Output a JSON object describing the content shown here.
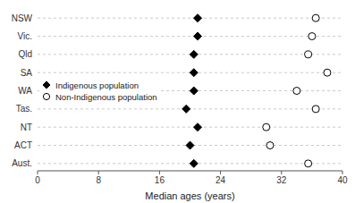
{
  "chart_data": {
    "type": "dot",
    "categories": [
      "NSW",
      "Vic.",
      "Qld",
      "SA",
      "WA",
      "Tas.",
      "NT",
      "ACT",
      "Aust."
    ],
    "series": [
      {
        "name": "Indigenous population",
        "color": "#000000",
        "marker": "diamond",
        "values": [
          21.0,
          21.0,
          20.5,
          20.5,
          20.5,
          19.5,
          21.0,
          20.0,
          20.5
        ]
      },
      {
        "name": "Non-Indigenous population",
        "color": "#ffffff",
        "marker": "circle",
        "values": [
          36.5,
          36.0,
          35.5,
          38.0,
          34.0,
          36.5,
          30.0,
          30.5,
          35.5
        ]
      }
    ],
    "orientation": "horizontal",
    "xlabel": "Median ages (years)",
    "xlim": [
      0,
      40
    ],
    "xticks": [
      0,
      8,
      16,
      24,
      32,
      40
    ],
    "grid": true,
    "legend": "center left"
  }
}
